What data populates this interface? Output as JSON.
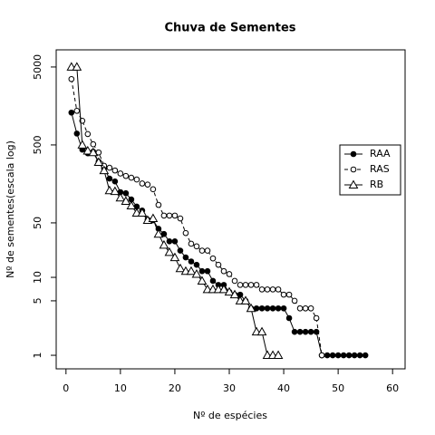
{
  "chart_data": {
    "type": "line",
    "title": "Chuva de Sementes",
    "x_label": "Nº de espécies",
    "y_label": "Nº de sementes(escala log)",
    "xlim": [
      -1.8,
      62.3
    ],
    "xticks": [
      0,
      10,
      20,
      30,
      40,
      50,
      60
    ],
    "ylim": [
      0.67,
      8300
    ],
    "yticks": [
      1,
      5,
      10,
      50,
      500,
      5000
    ],
    "log_y": true,
    "legend_position": "right",
    "series": [
      {
        "name": "RAA",
        "color": "#000000",
        "marker": "filled-circle",
        "dashed": false,
        "x": [
          1,
          2,
          3,
          4,
          5,
          6,
          7,
          8,
          9,
          10,
          11,
          12,
          13,
          14,
          15,
          16,
          17,
          18,
          19,
          20,
          21,
          22,
          23,
          24,
          25,
          26,
          27,
          28,
          29,
          30,
          31,
          32,
          33,
          34,
          35,
          36,
          37,
          38,
          39,
          40,
          41,
          42,
          43,
          44,
          45,
          46,
          47,
          48,
          49,
          50,
          51,
          52,
          53,
          54,
          55
        ],
        "values": [
          1300,
          700,
          435,
          390,
          410,
          305,
          250,
          185,
          170,
          124,
          120,
          100,
          81,
          72,
          55,
          54,
          42,
          36,
          29,
          29,
          22,
          18,
          16,
          14.5,
          12,
          12,
          9,
          8,
          8,
          6.5,
          6,
          6,
          5,
          4,
          4,
          4,
          4,
          4,
          4,
          4,
          3,
          2,
          2,
          2,
          2,
          2,
          1,
          1,
          1,
          1,
          1,
          1,
          1,
          1,
          1
        ]
      },
      {
        "name": "RAS",
        "color": "#000000",
        "marker": "open-circle",
        "dashed": true,
        "x": [
          1,
          2,
          3,
          4,
          5,
          6,
          7,
          8,
          9,
          10,
          11,
          12,
          13,
          14,
          15,
          16,
          17,
          18,
          19,
          20,
          21,
          22,
          23,
          24,
          25,
          26,
          27,
          28,
          29,
          30,
          31,
          32,
          33,
          34,
          35,
          36,
          37,
          38,
          39,
          40,
          41,
          42,
          43,
          44,
          45,
          46,
          47
        ],
        "values": [
          3500,
          1370,
          1020,
          690,
          510,
          400,
          270,
          255,
          235,
          215,
          200,
          190,
          180,
          160,
          155,
          135,
          85,
          62,
          62,
          62,
          57,
          37,
          27,
          25,
          22,
          22,
          17.5,
          14.5,
          12,
          11,
          9,
          8,
          8,
          8,
          8,
          7,
          7,
          7,
          7,
          6,
          6,
          5,
          4,
          4,
          4,
          3,
          1
        ]
      },
      {
        "name": "RB",
        "color": "#000000",
        "marker": "triangle",
        "dashed": false,
        "x": [
          1,
          2,
          3,
          4,
          5,
          6,
          7,
          8,
          9,
          10,
          11,
          12,
          13,
          14,
          15,
          16,
          17,
          18,
          19,
          20,
          21,
          22,
          23,
          24,
          25,
          26,
          27,
          28,
          29,
          30,
          31,
          32,
          33,
          34,
          35,
          36,
          37,
          38,
          39
        ],
        "values": [
          5000,
          5000,
          500,
          420,
          400,
          300,
          235,
          130,
          127,
          105,
          95,
          83,
          67,
          67,
          54,
          57,
          36,
          26,
          21,
          18,
          13,
          12,
          12,
          11,
          9,
          7,
          7,
          7,
          7,
          6.5,
          6,
          5,
          5,
          4,
          2,
          2,
          1,
          1,
          1
        ]
      }
    ]
  }
}
